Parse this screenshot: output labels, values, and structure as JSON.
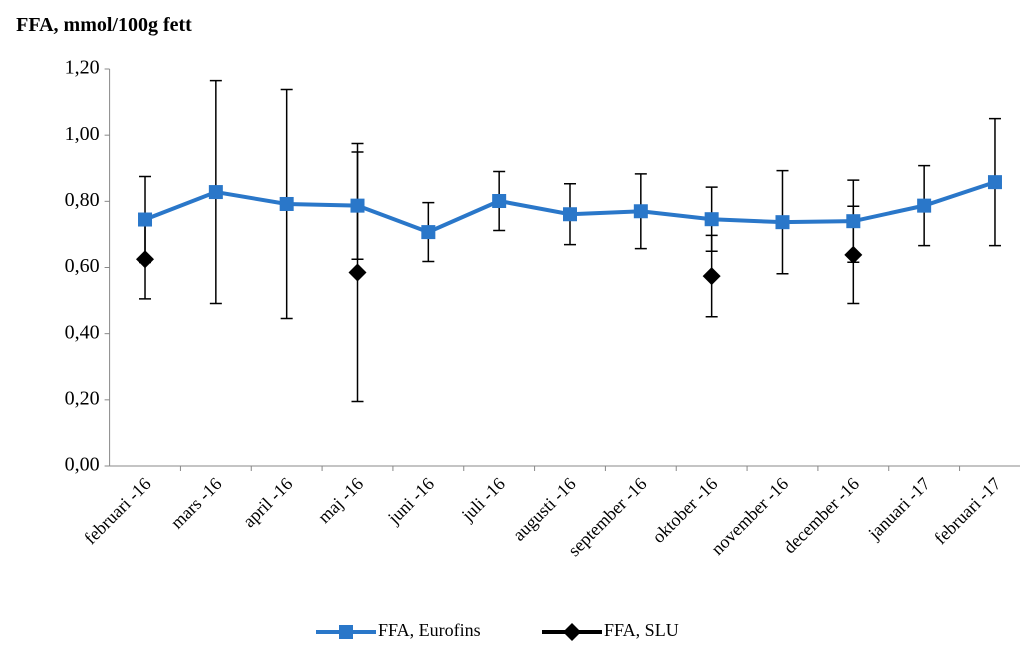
{
  "chart_data": {
    "type": "line",
    "title": "FFA, mmol/100g fett",
    "categories": [
      "februari -16",
      "mars -16",
      "april -16",
      "maj -16",
      "juni -16",
      "juli -16",
      "augusti -16",
      "september -16",
      "oktober -16",
      "november -16",
      "december -16",
      "januari -17",
      "februari -17"
    ],
    "series": [
      {
        "name": "FFA, Eurofins",
        "color": "#2a77c9",
        "marker": "square",
        "values": [
          0.745,
          0.828,
          0.792,
          0.787,
          0.707,
          0.801,
          0.761,
          0.77,
          0.746,
          0.737,
          0.74,
          0.787,
          0.858
        ],
        "errors": [
          0.13,
          0.337,
          0.346,
          0.162,
          0.089,
          0.089,
          0.092,
          0.113,
          0.097,
          0.156,
          0.124,
          0.121,
          0.192
        ]
      },
      {
        "name": "FFA, SLU",
        "color": "#000000",
        "marker": "diamond",
        "values": [
          0.625,
          null,
          null,
          0.585,
          null,
          null,
          null,
          null,
          0.574,
          null,
          0.638,
          null,
          null
        ],
        "errors": [
          0.12,
          null,
          null,
          0.39,
          null,
          null,
          null,
          null,
          0.123,
          null,
          0.147,
          null,
          null
        ]
      }
    ],
    "ylim": [
      0,
      1.2
    ],
    "yticks": [
      {
        "value": 0,
        "label": "0,00"
      },
      {
        "value": 0.2,
        "label": "0,20"
      },
      {
        "value": 0.4,
        "label": "0,40"
      },
      {
        "value": 0.6,
        "label": "0,60"
      },
      {
        "value": 0.8,
        "label": "0,80"
      },
      {
        "value": 1.0,
        "label": "1,00"
      },
      {
        "value": 1.2,
        "label": "1,20"
      }
    ],
    "legend": "bottom"
  }
}
